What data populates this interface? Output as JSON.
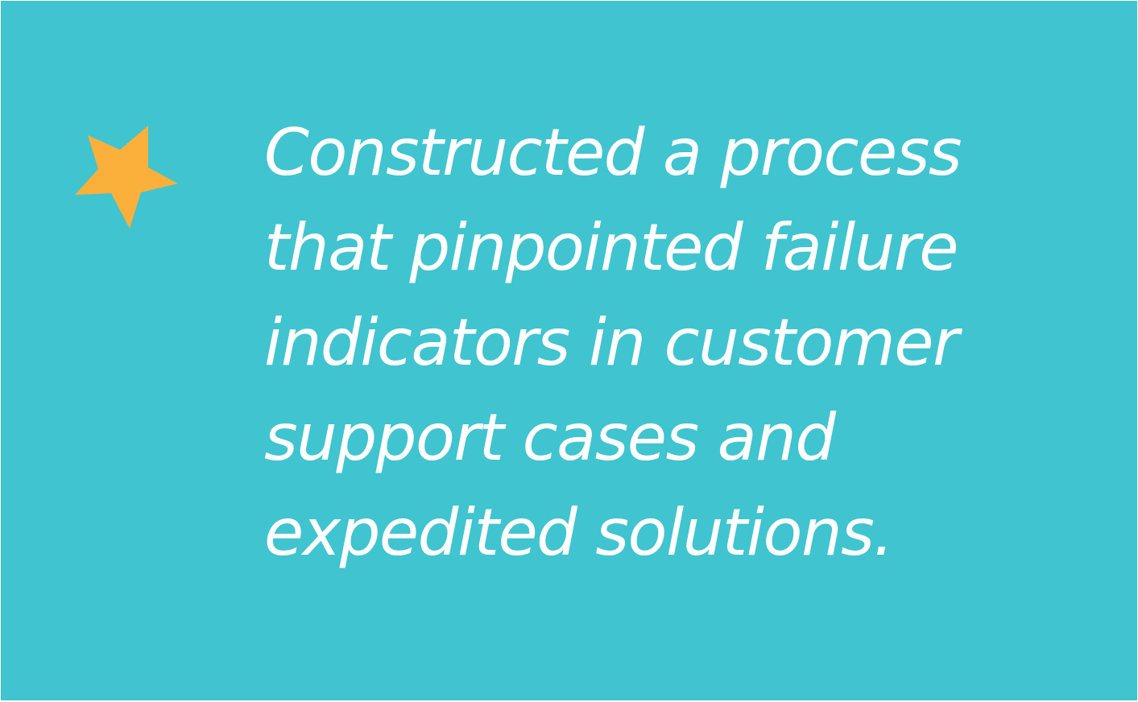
{
  "card": {
    "background_color": "#40c4cf",
    "text_color": "#ffffff",
    "star_color": "#fbb03b",
    "star_icon": "star-icon"
  },
  "quote": {
    "lines": [
      "Constructed a process",
      "that pinpointed failure",
      "indicators in customer",
      "support cases and",
      "expedited solutions."
    ]
  }
}
